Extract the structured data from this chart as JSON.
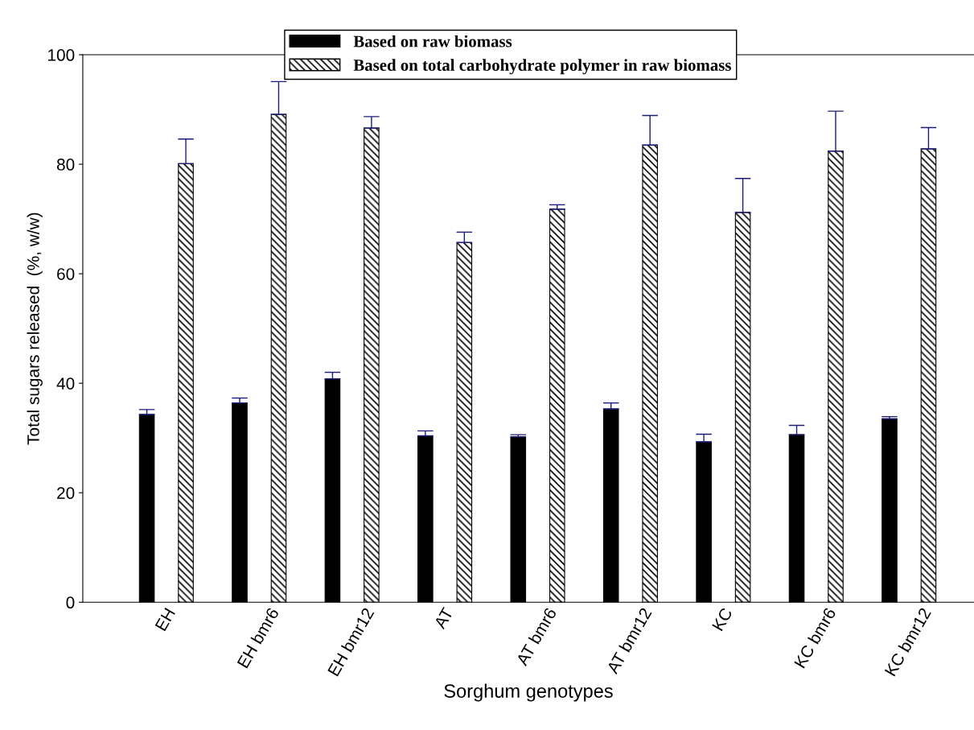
{
  "chart_data": {
    "type": "bar",
    "xlabel": "Sorghum genotypes",
    "ylabel": "Total sugars released  (%, w/w)",
    "categories": [
      "EH",
      "EH bmr6",
      "EH bmr12",
      "AT",
      "AT bmr6",
      "AT bmr12",
      "KC",
      "KC bmr6",
      "KC bmr12"
    ],
    "series": [
      {
        "name": "Based on raw biomass",
        "color": "#000000",
        "values": [
          34.3,
          36.4,
          40.8,
          30.4,
          30.2,
          35.3,
          29.3,
          30.6,
          33.5
        ],
        "errors": [
          [
            34.3,
            35.2
          ],
          [
            36.4,
            37.3
          ],
          [
            40.8,
            42.0
          ],
          [
            30.4,
            31.3
          ],
          [
            30.2,
            30.6
          ],
          [
            35.3,
            36.4
          ],
          [
            29.3,
            30.7
          ],
          [
            30.6,
            32.3
          ],
          [
            33.5,
            33.9
          ]
        ]
      },
      {
        "name": "Based on total carbohydrate polymer in raw biomass",
        "color": "#000000",
        "values": [
          80.1,
          89.1,
          86.6,
          65.7,
          71.8,
          83.5,
          71.2,
          82.4,
          82.8
        ],
        "errors": [
          [
            80.1,
            84.6
          ],
          [
            89.1,
            95.1
          ],
          [
            86.6,
            88.7
          ],
          [
            65.7,
            67.6
          ],
          [
            71.8,
            72.6
          ],
          [
            83.5,
            88.9
          ],
          [
            71.2,
            77.4
          ],
          [
            82.4,
            89.7
          ],
          [
            82.8,
            86.7
          ]
        ]
      }
    ],
    "ylim": [
      0,
      100
    ],
    "yticks": [
      0,
      20,
      40,
      60,
      80,
      100
    ],
    "grid": false,
    "legend": "top"
  }
}
